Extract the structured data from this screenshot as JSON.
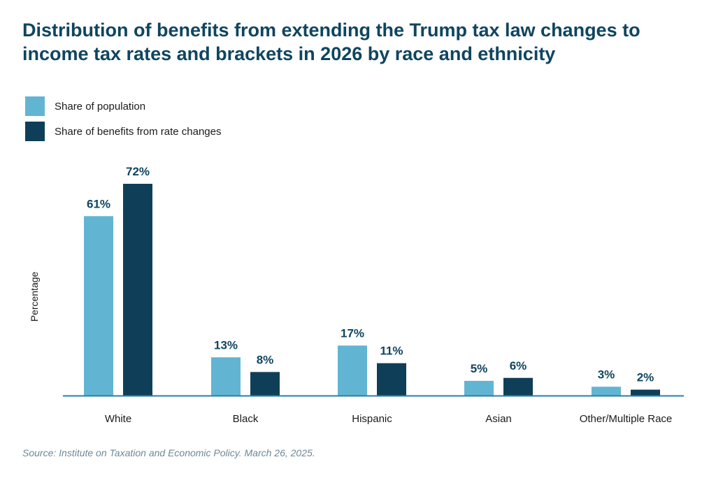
{
  "title_lines": [
    "Distribution of benefits from extending the Trump tax law changes to",
    "income tax rates and brackets in 2026 by race and ethnicity"
  ],
  "legend": [
    {
      "label": "Share of population",
      "color": "#62b5d2"
    },
    {
      "label": "Share of benefits from rate changes",
      "color": "#0f3f58"
    }
  ],
  "source": "Source: Institute on Taxation and Economic Policy. March 26, 2025.",
  "chart_data": {
    "type": "bar",
    "title": "Distribution of benefits from extending the Trump tax law changes to income tax rates and brackets in 2026 by race and ethnicity",
    "xlabel": "",
    "ylabel": "Percentage",
    "categories": [
      "White",
      "Black",
      "Hispanic",
      "Asian",
      "Other/Multiple Race"
    ],
    "series": [
      {
        "name": "Share of population",
        "values": [
          61,
          13,
          17,
          5,
          3
        ],
        "labels": [
          "61%",
          "13%",
          "17%",
          "5%",
          "3%"
        ],
        "color": "#62b5d2"
      },
      {
        "name": "Share of benefits from rate changes",
        "values": [
          72,
          8,
          11,
          6,
          2
        ],
        "labels": [
          "72%",
          "8%",
          "11%",
          "6%",
          "2%"
        ],
        "color": "#0f3f58"
      }
    ],
    "ylim": [
      0,
      72
    ],
    "grid": false,
    "legend_position": "top-left",
    "baseline_color": "#2a7fa5",
    "data_label_color": "#0f4560"
  }
}
